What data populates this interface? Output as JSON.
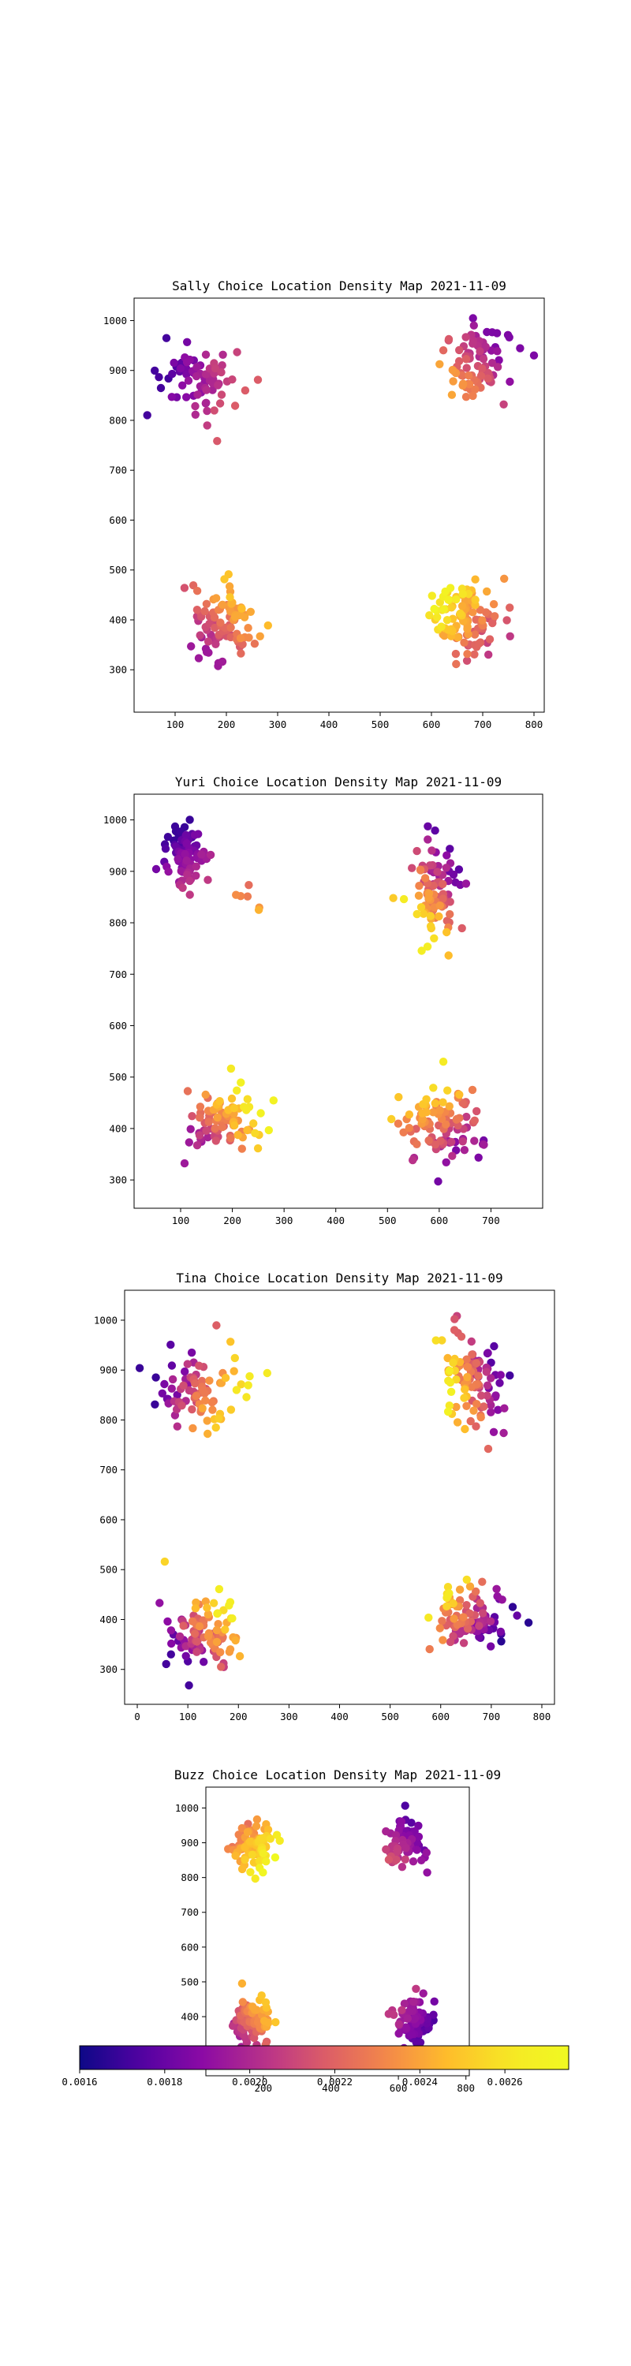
{
  "colorbar": {
    "colormap": "plasma",
    "min": 0.0016,
    "max": 0.00275,
    "ticks": [
      "0.0016",
      "0.0018",
      "0.0020",
      "0.0022",
      "0.0024",
      "0.0026"
    ]
  },
  "chart_data": [
    {
      "type": "scatter",
      "title": "Sally Choice Location Density Map 2021-11-09",
      "xlim": [
        20,
        820
      ],
      "ylim": [
        215,
        1045
      ],
      "xticks": [
        100,
        200,
        300,
        400,
        500,
        600,
        700,
        800
      ],
      "yticks": [
        300,
        400,
        500,
        600,
        700,
        800,
        900,
        1000
      ],
      "clusters": [
        {
          "cx": 145,
          "cy": 880,
          "sx": 48,
          "sy": 52,
          "n": 75,
          "c0": 0.1,
          "c1": 0.5,
          "tx": 1,
          "ty": -0.2,
          "seed": 11
        },
        {
          "cx": 685,
          "cy": 910,
          "sx": 48,
          "sy": 55,
          "n": 85,
          "c0": 0.22,
          "c1": 0.7,
          "tx": -1,
          "ty": -0.8,
          "seed": 12
        },
        {
          "cx": 195,
          "cy": 390,
          "sx": 40,
          "sy": 52,
          "n": 95,
          "c0": 0.3,
          "c1": 0.78,
          "tx": 0.8,
          "ty": 0.8,
          "seed": 13
        },
        {
          "cx": 665,
          "cy": 400,
          "sx": 48,
          "sy": 50,
          "n": 110,
          "c0": 0.4,
          "c1": 0.97,
          "tx": -0.8,
          "ty": 0.6,
          "seed": 14
        }
      ]
    },
    {
      "type": "scatter",
      "title": "Yuri Choice Location Density Map 2021-11-09",
      "xlim": [
        10,
        800
      ],
      "ylim": [
        245,
        1050
      ],
      "xticks": [
        100,
        200,
        300,
        400,
        500,
        600,
        700
      ],
      "yticks": [
        300,
        400,
        500,
        600,
        700,
        800,
        900,
        1000
      ],
      "clusters": [
        {
          "cx": 110,
          "cy": 930,
          "sx": 28,
          "sy": 42,
          "n": 85,
          "c0": 0.08,
          "c1": 0.4,
          "tx": 0.5,
          "ty": -1,
          "seed": 21
        },
        {
          "cx": 220,
          "cy": 850,
          "sx": 18,
          "sy": 25,
          "n": 6,
          "c0": 0.5,
          "c1": 0.75,
          "tx": 0,
          "ty": -1,
          "seed": 22
        },
        {
          "cx": 590,
          "cy": 860,
          "sx": 30,
          "sy": 58,
          "n": 95,
          "c0": 0.15,
          "c1": 0.92,
          "tx": -0.5,
          "ty": -0.8,
          "seed": 23
        },
        {
          "cx": 180,
          "cy": 420,
          "sx": 45,
          "sy": 42,
          "n": 90,
          "c0": 0.3,
          "c1": 0.95,
          "tx": 0.8,
          "ty": 0.6,
          "seed": 24
        },
        {
          "cx": 600,
          "cy": 410,
          "sx": 50,
          "sy": 55,
          "n": 105,
          "c0": 0.2,
          "c1": 0.9,
          "tx": -0.4,
          "ty": 0.9,
          "seed": 25
        }
      ]
    },
    {
      "type": "scatter",
      "title": "Tina Choice Location Density Map 2021-11-09",
      "xlim": [
        -25,
        825
      ],
      "ylim": [
        230,
        1060
      ],
      "xticks": [
        0,
        100,
        200,
        300,
        400,
        500,
        600,
        700,
        800
      ],
      "yticks": [
        300,
        400,
        500,
        600,
        700,
        800,
        900,
        1000
      ],
      "clusters": [
        {
          "cx": 120,
          "cy": 860,
          "sx": 55,
          "sy": 55,
          "n": 90,
          "c0": 0.08,
          "c1": 0.9,
          "tx": 1,
          "ty": -0.3,
          "seed": 31
        },
        {
          "cx": 665,
          "cy": 870,
          "sx": 42,
          "sy": 60,
          "n": 100,
          "c0": 0.1,
          "c1": 0.95,
          "tx": -1,
          "ty": -0.3,
          "seed": 32
        },
        {
          "cx": 130,
          "cy": 370,
          "sx": 48,
          "sy": 55,
          "n": 100,
          "c0": 0.1,
          "c1": 0.92,
          "tx": 0.8,
          "ty": 0.8,
          "seed": 33
        },
        {
          "cx": 650,
          "cy": 400,
          "sx": 55,
          "sy": 42,
          "n": 95,
          "c0": 0.05,
          "c1": 0.9,
          "tx": -0.9,
          "ty": 0.5,
          "seed": 34
        }
      ]
    },
    {
      "type": "scatter",
      "title": "Buzz Choice Location Density Map 2021-11-09",
      "xlim": [
        30,
        810
      ],
      "ylim": [
        230,
        1060
      ],
      "xticks": [
        200,
        400,
        600,
        800
      ],
      "yticks": [
        300,
        400,
        500,
        600,
        700,
        800,
        900,
        1000
      ],
      "clusters": [
        {
          "cx": 170,
          "cy": 890,
          "sx": 40,
          "sy": 48,
          "n": 90,
          "c0": 0.5,
          "c1": 1.0,
          "tx": 0.6,
          "ty": -0.5,
          "seed": 41
        },
        {
          "cx": 620,
          "cy": 890,
          "sx": 42,
          "sy": 48,
          "n": 70,
          "c0": 0.12,
          "c1": 0.5,
          "tx": -0.6,
          "ty": -0.6,
          "seed": 42
        },
        {
          "cx": 165,
          "cy": 390,
          "sx": 32,
          "sy": 42,
          "n": 95,
          "c0": 0.32,
          "c1": 0.78,
          "tx": 0.7,
          "ty": 0.7,
          "seed": 43
        },
        {
          "cx": 650,
          "cy": 390,
          "sx": 38,
          "sy": 42,
          "n": 85,
          "c0": 0.08,
          "c1": 0.4,
          "tx": -0.7,
          "ty": 0.6,
          "seed": 44
        }
      ]
    }
  ]
}
